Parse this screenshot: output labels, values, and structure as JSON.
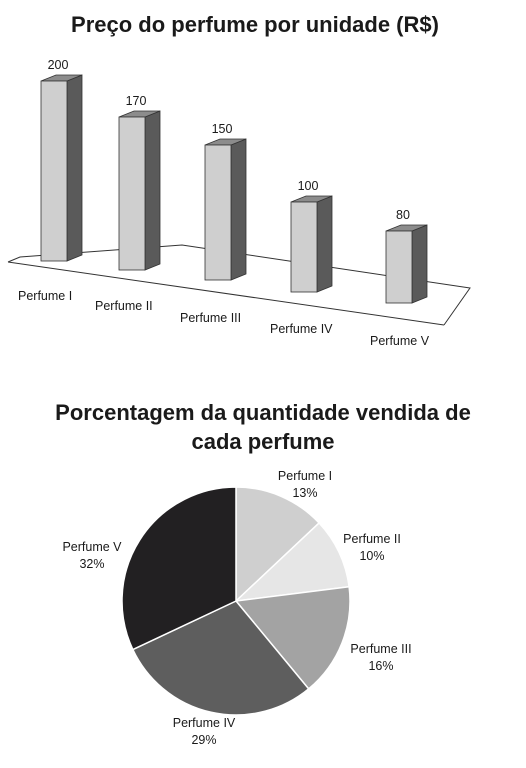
{
  "chart_data": [
    {
      "type": "bar",
      "title": "Preço do perfume por unidade (R$)",
      "categories": [
        "Perfume I",
        "Perfume II",
        "Perfume III",
        "Perfume IV",
        "Perfume V"
      ],
      "values": [
        200,
        170,
        150,
        100,
        80
      ],
      "colors": {
        "front": "#cfcfcf",
        "side": "#5a5a5a",
        "top": "#8c8c8c",
        "edge": "#333333"
      }
    },
    {
      "type": "pie",
      "title_line1": "Porcentagem da quantidade vendida de",
      "title_line2": "cada perfume",
      "categories": [
        "Perfume I",
        "Perfume II",
        "Perfume III",
        "Perfume IV",
        "Perfume V"
      ],
      "values": [
        13,
        10,
        16,
        29,
        32
      ],
      "value_labels": [
        "13%",
        "10%",
        "16%",
        "29%",
        "32%"
      ],
      "colors": [
        "#cfcfcf",
        "#e6e6e6",
        "#a3a3a3",
        "#5e5e5e",
        "#222022"
      ]
    }
  ]
}
